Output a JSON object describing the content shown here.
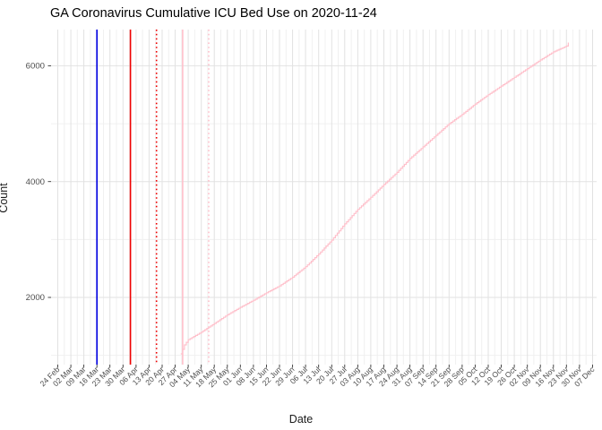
{
  "chart_data": {
    "type": "line",
    "title": "GA Coronavirus Cumulative ICU Bed Use on 2020-11-24",
    "xlabel": "Date",
    "ylabel": "Count",
    "grid": true,
    "legend": false,
    "x_start_date": "2020-02-24",
    "x_tick_interval_days": 7,
    "x_tick_labels": [
      "24 Feb",
      "02 Mar",
      "09 Mar",
      "16 Mar",
      "23 Mar",
      "30 Mar",
      "06 Apr",
      "13 Apr",
      "20 Apr",
      "27 Apr",
      "04 May",
      "11 May",
      "18 May",
      "25 May",
      "01 Jun",
      "08 Jun",
      "15 Jun",
      "22 Jun",
      "29 Jun",
      "06 Jul",
      "13 Jul",
      "20 Jul",
      "27 Jul",
      "03 Aug",
      "10 Aug",
      "17 Aug",
      "24 Aug",
      "31 Aug",
      "07 Sep",
      "14 Sep",
      "21 Sep",
      "28 Sep",
      "05 Oct",
      "12 Oct",
      "19 Oct",
      "26 Oct",
      "02 Nov",
      "09 Nov",
      "16 Nov",
      "23 Nov",
      "30 Nov",
      "07 Dec"
    ],
    "y_ticks": [
      2000,
      4000,
      6000
    ],
    "y_minor_ticks": [
      1000,
      3000,
      5000
    ],
    "ylim": [
      840,
      6640
    ],
    "vlines": [
      {
        "date": "2020-03-16",
        "color": "#0000E0",
        "style": "solid"
      },
      {
        "date": "2020-04-03",
        "color": "#EE0000",
        "style": "solid"
      },
      {
        "date": "2020-04-17",
        "color": "#EE0000",
        "style": "dotted"
      },
      {
        "date": "2020-05-01",
        "color": "#FFC0CB",
        "style": "solid"
      },
      {
        "date": "2020-05-15",
        "color": "#FFC0CB",
        "style": "dotted"
      }
    ],
    "series": [
      {
        "name": "cumulative-icu-bed-use",
        "color": "#FFC0CB",
        "points": [
          {
            "date": "2020-04-30",
            "value": 1025
          },
          {
            "date": "2020-05-02",
            "value": 1180
          },
          {
            "date": "2020-05-04",
            "value": 1270
          },
          {
            "date": "2020-05-11",
            "value": 1400
          },
          {
            "date": "2020-05-18",
            "value": 1550
          },
          {
            "date": "2020-05-25",
            "value": 1700
          },
          {
            "date": "2020-06-01",
            "value": 1830
          },
          {
            "date": "2020-06-08",
            "value": 1950
          },
          {
            "date": "2020-06-15",
            "value": 2080
          },
          {
            "date": "2020-06-22",
            "value": 2200
          },
          {
            "date": "2020-06-29",
            "value": 2350
          },
          {
            "date": "2020-07-06",
            "value": 2530
          },
          {
            "date": "2020-07-13",
            "value": 2750
          },
          {
            "date": "2020-07-20",
            "value": 2990
          },
          {
            "date": "2020-07-27",
            "value": 3270
          },
          {
            "date": "2020-08-03",
            "value": 3520
          },
          {
            "date": "2020-08-10",
            "value": 3730
          },
          {
            "date": "2020-08-17",
            "value": 3950
          },
          {
            "date": "2020-08-24",
            "value": 4160
          },
          {
            "date": "2020-08-31",
            "value": 4400
          },
          {
            "date": "2020-09-07",
            "value": 4600
          },
          {
            "date": "2020-09-14",
            "value": 4800
          },
          {
            "date": "2020-09-21",
            "value": 5000
          },
          {
            "date": "2020-09-28",
            "value": 5160
          },
          {
            "date": "2020-10-05",
            "value": 5340
          },
          {
            "date": "2020-10-12",
            "value": 5500
          },
          {
            "date": "2020-10-19",
            "value": 5650
          },
          {
            "date": "2020-10-26",
            "value": 5800
          },
          {
            "date": "2020-11-02",
            "value": 5950
          },
          {
            "date": "2020-11-09",
            "value": 6100
          },
          {
            "date": "2020-11-16",
            "value": 6240
          },
          {
            "date": "2020-11-23",
            "value": 6340
          },
          {
            "date": "2020-11-24",
            "value": 6400
          }
        ]
      }
    ],
    "colors": {
      "background": "#FFFFFF",
      "grid_major": "#E2E2E2",
      "grid_minor": "#F0F0F0",
      "tick_mark": "#333333",
      "tick_text": "#4D4D4D",
      "axis_text": "#1A1A1A",
      "title_text": "#000000"
    }
  }
}
